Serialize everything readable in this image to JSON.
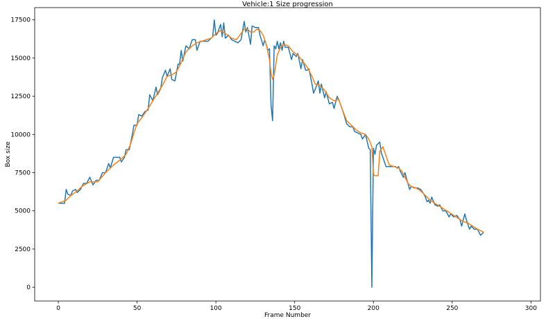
{
  "chart_data": {
    "type": "line",
    "title": "Vehicle:1 Size progression",
    "xlabel": "Frame Number",
    "ylabel": "Box size",
    "xlim": [
      -15,
      306
    ],
    "ylim": [
      -900,
      18300
    ],
    "xticks": [
      0,
      50,
      100,
      150,
      200,
      250,
      300
    ],
    "yticks": [
      0,
      2500,
      5000,
      7500,
      10000,
      12500,
      15000,
      17500
    ],
    "grid": false,
    "series": [
      {
        "color": "#1f77b4",
        "points": [
          [
            0,
            5500
          ],
          [
            4,
            5500
          ],
          [
            5,
            6400
          ],
          [
            6,
            6100
          ],
          [
            8,
            6000
          ],
          [
            9,
            6300
          ],
          [
            11,
            6400
          ],
          [
            12,
            6200
          ],
          [
            14,
            6400
          ],
          [
            16,
            6800
          ],
          [
            18,
            6800
          ],
          [
            20,
            7200
          ],
          [
            22,
            6700
          ],
          [
            24,
            7000
          ],
          [
            26,
            7000
          ],
          [
            28,
            7500
          ],
          [
            30,
            7500
          ],
          [
            32,
            8100
          ],
          [
            33,
            7800
          ],
          [
            35,
            8500
          ],
          [
            37,
            8500
          ],
          [
            39,
            8500
          ],
          [
            40,
            8200
          ],
          [
            42,
            8500
          ],
          [
            43,
            9000
          ],
          [
            45,
            9000
          ],
          [
            47,
            10000
          ],
          [
            48,
            10600
          ],
          [
            50,
            10600
          ],
          [
            51,
            11300
          ],
          [
            53,
            11200
          ],
          [
            55,
            11500
          ],
          [
            57,
            11600
          ],
          [
            58,
            12600
          ],
          [
            60,
            12200
          ],
          [
            62,
            13100
          ],
          [
            63,
            12600
          ],
          [
            65,
            13000
          ],
          [
            66,
            13700
          ],
          [
            68,
            14200
          ],
          [
            69,
            13800
          ],
          [
            71,
            14300
          ],
          [
            72,
            13600
          ],
          [
            74,
            13500
          ],
          [
            76,
            14600
          ],
          [
            77,
            14600
          ],
          [
            78,
            15500
          ],
          [
            79,
            14800
          ],
          [
            81,
            15800
          ],
          [
            83,
            15600
          ],
          [
            85,
            16200
          ],
          [
            87,
            16200
          ],
          [
            88,
            15500
          ],
          [
            90,
            16100
          ],
          [
            92,
            16100
          ],
          [
            95,
            16100
          ],
          [
            98,
            16400
          ],
          [
            99,
            17500
          ],
          [
            100,
            16500
          ],
          [
            101,
            16600
          ],
          [
            103,
            17200
          ],
          [
            104,
            16400
          ],
          [
            105,
            17300
          ],
          [
            106,
            16300
          ],
          [
            108,
            16500
          ],
          [
            110,
            16200
          ],
          [
            112,
            16100
          ],
          [
            114,
            16000
          ],
          [
            116,
            16200
          ],
          [
            118,
            17400
          ],
          [
            119,
            16700
          ],
          [
            120,
            17000
          ],
          [
            122,
            15900
          ],
          [
            123,
            17100
          ],
          [
            125,
            17000
          ],
          [
            127,
            17000
          ],
          [
            128,
            16500
          ],
          [
            130,
            15800
          ],
          [
            131,
            16200
          ],
          [
            133,
            15500
          ],
          [
            134,
            15600
          ],
          [
            135,
            11900
          ],
          [
            136,
            10900
          ],
          [
            137,
            15800
          ],
          [
            138,
            15600
          ],
          [
            139,
            16100
          ],
          [
            140,
            15600
          ],
          [
            141,
            16000
          ],
          [
            142,
            15500
          ],
          [
            143,
            16100
          ],
          [
            144,
            15700
          ],
          [
            146,
            15700
          ],
          [
            148,
            14900
          ],
          [
            149,
            15300
          ],
          [
            151,
            15100
          ],
          [
            152,
            15300
          ],
          [
            154,
            14300
          ],
          [
            155,
            14900
          ],
          [
            157,
            14200
          ],
          [
            158,
            14200
          ],
          [
            159,
            14300
          ],
          [
            161,
            13300
          ],
          [
            162,
            12700
          ],
          [
            164,
            13200
          ],
          [
            165,
            13500
          ],
          [
            166,
            12700
          ],
          [
            167,
            13300
          ],
          [
            169,
            12400
          ],
          [
            170,
            12800
          ],
          [
            172,
            12000
          ],
          [
            174,
            12100
          ],
          [
            175,
            11700
          ],
          [
            177,
            12500
          ],
          [
            179,
            12000
          ],
          [
            181,
            11400
          ],
          [
            183,
            10700
          ],
          [
            185,
            10500
          ],
          [
            187,
            10500
          ],
          [
            188,
            10200
          ],
          [
            190,
            10100
          ],
          [
            192,
            10000
          ],
          [
            193,
            9700
          ],
          [
            195,
            10000
          ],
          [
            197,
            9100
          ],
          [
            198,
            9000
          ],
          [
            199,
            0
          ],
          [
            200,
            9100
          ],
          [
            201,
            8700
          ],
          [
            202,
            9300
          ],
          [
            204,
            9500
          ],
          [
            205,
            8800
          ],
          [
            206,
            8500
          ],
          [
            208,
            7900
          ],
          [
            210,
            7900
          ],
          [
            212,
            7900
          ],
          [
            214,
            7900
          ],
          [
            215,
            7800
          ],
          [
            216,
            7900
          ],
          [
            217,
            7600
          ],
          [
            219,
            7200
          ],
          [
            220,
            7500
          ],
          [
            221,
            7100
          ],
          [
            223,
            6400
          ],
          [
            224,
            6600
          ],
          [
            226,
            6500
          ],
          [
            228,
            6500
          ],
          [
            230,
            6400
          ],
          [
            232,
            6100
          ],
          [
            233,
            5900
          ],
          [
            234,
            5600
          ],
          [
            235,
            5700
          ],
          [
            236,
            5500
          ],
          [
            237,
            5900
          ],
          [
            239,
            5400
          ],
          [
            241,
            5300
          ],
          [
            242,
            5400
          ],
          [
            244,
            5000
          ],
          [
            246,
            5000
          ],
          [
            248,
            4600
          ],
          [
            249,
            4800
          ],
          [
            251,
            4600
          ],
          [
            253,
            4700
          ],
          [
            255,
            4400
          ],
          [
            256,
            4000
          ],
          [
            258,
            4800
          ],
          [
            259,
            4400
          ],
          [
            261,
            3800
          ],
          [
            262,
            4000
          ],
          [
            264,
            3800
          ],
          [
            266,
            3800
          ],
          [
            268,
            3400
          ],
          [
            270,
            3600
          ]
        ]
      },
      {
        "color": "#ff7f0e",
        "points": [
          [
            0,
            5500
          ],
          [
            5,
            5700
          ],
          [
            8,
            6000
          ],
          [
            12,
            6300
          ],
          [
            15,
            6600
          ],
          [
            20,
            6900
          ],
          [
            25,
            6900
          ],
          [
            30,
            7500
          ],
          [
            35,
            8000
          ],
          [
            40,
            8400
          ],
          [
            43,
            8700
          ],
          [
            46,
            9400
          ],
          [
            48,
            10100
          ],
          [
            50,
            10700
          ],
          [
            53,
            11100
          ],
          [
            57,
            11700
          ],
          [
            60,
            12200
          ],
          [
            63,
            12700
          ],
          [
            66,
            13200
          ],
          [
            69,
            13800
          ],
          [
            72,
            13900
          ],
          [
            75,
            14100
          ],
          [
            78,
            14700
          ],
          [
            81,
            15400
          ],
          [
            85,
            15800
          ],
          [
            88,
            16000
          ],
          [
            91,
            16100
          ],
          [
            94,
            16200
          ],
          [
            97,
            16300
          ],
          [
            100,
            16600
          ],
          [
            103,
            16800
          ],
          [
            106,
            16600
          ],
          [
            110,
            16300
          ],
          [
            113,
            16200
          ],
          [
            116,
            16600
          ],
          [
            118,
            16900
          ],
          [
            120,
            16900
          ],
          [
            122,
            16700
          ],
          [
            124,
            16700
          ],
          [
            126,
            16900
          ],
          [
            128,
            16800
          ],
          [
            130,
            16500
          ],
          [
            132,
            15900
          ],
          [
            134,
            14900
          ],
          [
            135,
            14000
          ],
          [
            136,
            13600
          ],
          [
            137,
            13900
          ],
          [
            139,
            15200
          ],
          [
            141,
            15700
          ],
          [
            143,
            15900
          ],
          [
            146,
            15800
          ],
          [
            149,
            15400
          ],
          [
            152,
            15200
          ],
          [
            155,
            14800
          ],
          [
            158,
            14400
          ],
          [
            161,
            13800
          ],
          [
            163,
            13300
          ],
          [
            166,
            13200
          ],
          [
            169,
            12900
          ],
          [
            172,
            12400
          ],
          [
            175,
            12200
          ],
          [
            178,
            12300
          ],
          [
            180,
            11700
          ],
          [
            183,
            10900
          ],
          [
            186,
            10600
          ],
          [
            189,
            10300
          ],
          [
            192,
            10100
          ],
          [
            195,
            10000
          ],
          [
            197,
            9700
          ],
          [
            199,
            9200
          ],
          [
            200,
            7400
          ],
          [
            201,
            7300
          ],
          [
            203,
            7300
          ],
          [
            204,
            8900
          ],
          [
            206,
            9200
          ],
          [
            208,
            8600
          ],
          [
            210,
            8000
          ],
          [
            213,
            7900
          ],
          [
            216,
            7800
          ],
          [
            218,
            7600
          ],
          [
            220,
            7200
          ],
          [
            222,
            6800
          ],
          [
            224,
            6600
          ],
          [
            227,
            6500
          ],
          [
            230,
            6300
          ],
          [
            233,
            6000
          ],
          [
            236,
            5700
          ],
          [
            239,
            5500
          ],
          [
            242,
            5300
          ],
          [
            245,
            5100
          ],
          [
            248,
            4900
          ],
          [
            251,
            4700
          ],
          [
            254,
            4500
          ],
          [
            257,
            4300
          ],
          [
            260,
            4200
          ],
          [
            263,
            4000
          ],
          [
            266,
            3800
          ],
          [
            270,
            3600
          ]
        ]
      }
    ]
  }
}
